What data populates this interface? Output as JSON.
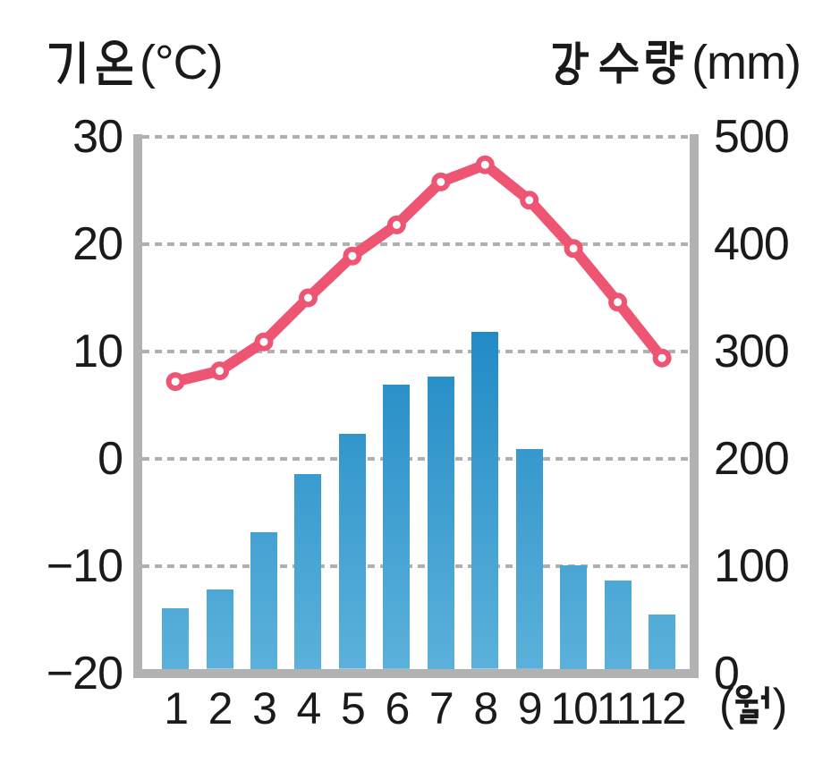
{
  "page": {
    "background": "#ffffff"
  },
  "left_axis": {
    "title": "기온(°C)",
    "tick_labels": [
      "30",
      "20",
      "10",
      "0",
      "−10",
      "−20"
    ],
    "tick_values": [
      30,
      20,
      10,
      0,
      -10,
      -20
    ]
  },
  "right_axis": {
    "title": "강수량(mm)",
    "tick_labels": [
      "500",
      "400",
      "300",
      "200",
      "100",
      "0"
    ],
    "tick_values": [
      500,
      400,
      300,
      200,
      100,
      0
    ]
  },
  "x_axis": {
    "labels": [
      "1",
      "2",
      "3",
      "4",
      "5",
      "6",
      "7",
      "8",
      "9",
      "10",
      "11",
      "12"
    ],
    "unit": "(월)"
  },
  "chart_data": {
    "type": "combo",
    "categories": [
      1,
      2,
      3,
      4,
      5,
      6,
      7,
      8,
      9,
      10,
      11,
      12
    ],
    "series": [
      {
        "name": "기온",
        "type": "line",
        "axis": "left",
        "unit": "°C",
        "color": "#ed5573",
        "marker": "open-circle",
        "values": [
          7.2,
          8.2,
          10.9,
          15.0,
          18.9,
          21.8,
          25.8,
          27.4,
          24.1,
          19.6,
          14.6,
          9.4
        ]
      },
      {
        "name": "강수량",
        "type": "bar",
        "axis": "right",
        "unit": "mm",
        "color_bottom": "#5bb1da",
        "color_top": "#2a8cc4",
        "values": [
          61,
          78,
          132,
          186,
          223,
          269,
          277,
          318,
          209,
          101,
          87,
          55
        ]
      }
    ],
    "left_axis_label": "기온(°C)",
    "right_axis_label": "강수량(mm)",
    "xlabel": "(월)",
    "left_ylim": [
      -20,
      30
    ],
    "right_ylim": [
      0,
      500
    ],
    "grid": "horizontal-dashed",
    "colors": {
      "axis": "#b2b2b2",
      "grid": "#b0b0b0",
      "text": "#1a1a1a"
    }
  }
}
